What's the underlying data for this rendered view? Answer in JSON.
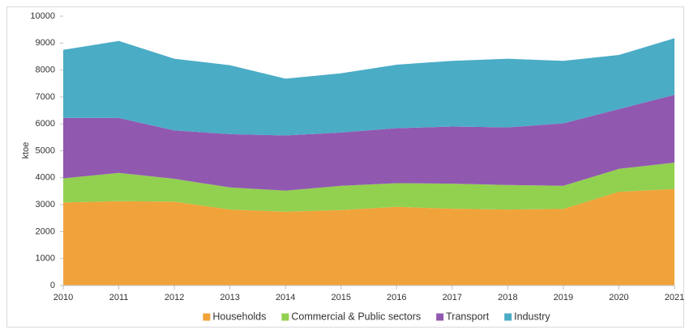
{
  "chart_data": {
    "type": "stacked_area",
    "y_label": "ktoe",
    "x": [
      2010,
      2011,
      2012,
      2013,
      2014,
      2015,
      2016,
      2017,
      2018,
      2019,
      2020,
      2021
    ],
    "xlim": [
      2010,
      2021
    ],
    "xticks": [
      2010,
      2011,
      2012,
      2013,
      2014,
      2015,
      2016,
      2017,
      2018,
      2019,
      2020,
      2021
    ],
    "ylim": [
      0,
      10000
    ],
    "yticks": [
      0,
      1000,
      2000,
      3000,
      4000,
      5000,
      6000,
      7000,
      8000,
      9000,
      10000
    ],
    "grid": false,
    "legend": "bottom",
    "series": [
      {
        "name": "Households",
        "color": "#f0a33a",
        "values": [
          3080,
          3130,
          3110,
          2820,
          2740,
          2800,
          2920,
          2850,
          2820,
          2840,
          3480,
          3580
        ]
      },
      {
        "name": "Commercial & Public sectors",
        "color": "#92d050",
        "values": [
          900,
          1050,
          850,
          820,
          780,
          900,
          880,
          930,
          910,
          860,
          850,
          980
        ]
      },
      {
        "name": "Transport",
        "color": "#9158b0",
        "values": [
          2240,
          2040,
          1800,
          1980,
          2050,
          1980,
          2040,
          2120,
          2140,
          2320,
          2220,
          2520
        ]
      },
      {
        "name": "Industry",
        "color": "#4bacc6",
        "values": [
          2530,
          2860,
          2660,
          2560,
          2110,
          2200,
          2360,
          2440,
          2550,
          2320,
          2010,
          2100
        ]
      }
    ]
  }
}
